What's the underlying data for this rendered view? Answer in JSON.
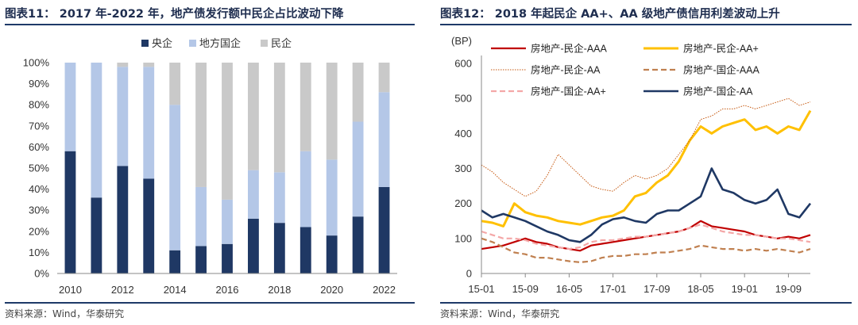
{
  "left": {
    "title": "图表11：  2017 年-2022 年，地产债发行额中民企占比波动下降",
    "source": "资料来源：Wind，华泰研究"
  },
  "right": {
    "title": "图表12：  2018 年起民企 AA+、AA 级地产债信用利差波动上升",
    "source": "资料来源：Wind，华泰研究"
  },
  "colors": {
    "central": "#1f3864",
    "local": "#b4c7e7",
    "private": "#c9c9c9",
    "priv_aaa": "#c00000",
    "priv_aap": "#ffc000",
    "priv_aa": "#c65911",
    "soe_aaa": "#c08050",
    "soe_aap": "#f4a7a7",
    "soe_aa": "#1f3864"
  },
  "chart_data": [
    {
      "type": "bar",
      "stacked": true,
      "legend_position": "top",
      "categories": [
        "2010",
        "2011",
        "2012",
        "2013",
        "2014",
        "2015",
        "2016",
        "2017",
        "2018",
        "2019",
        "2020",
        "2021",
        "2022"
      ],
      "x_tick_labels": [
        "2010",
        "2012",
        "2014",
        "2016",
        "2018",
        "2020",
        "2022"
      ],
      "y_tick_labels": [
        "0%",
        "10%",
        "20%",
        "30%",
        "40%",
        "50%",
        "60%",
        "70%",
        "80%",
        "90%",
        "100%"
      ],
      "ylim": [
        0,
        100
      ],
      "series": [
        {
          "name": "央企",
          "values": [
            58,
            36,
            51,
            45,
            11,
            13,
            14,
            26,
            24,
            22,
            18,
            27,
            41
          ]
        },
        {
          "name": "地方国企",
          "values": [
            42,
            64,
            47,
            53,
            69,
            28,
            21,
            23,
            24,
            36,
            36,
            45,
            45
          ]
        },
        {
          "name": "民企",
          "values": [
            0,
            0,
            2,
            2,
            20,
            59,
            65,
            51,
            52,
            42,
            46,
            28,
            14
          ]
        }
      ]
    },
    {
      "type": "line",
      "ylabel": "(BP)",
      "ylim": [
        0,
        600
      ],
      "y_tick_labels": [
        "0",
        "100",
        "200",
        "300",
        "400",
        "500",
        "600"
      ],
      "x_tick_labels": [
        "15-01",
        "15-09",
        "16-05",
        "17-01",
        "17-09",
        "18-05",
        "19-01",
        "19-09"
      ],
      "x_tick_positions": [
        0,
        8,
        16,
        24,
        32,
        40,
        48,
        56
      ],
      "legend_position": "top",
      "series": [
        {
          "name": "房地产-民企-AAA",
          "x": [
            0,
            2,
            4,
            6,
            8,
            10,
            12,
            14,
            16,
            18,
            20,
            22,
            24,
            26,
            28,
            30,
            32,
            34,
            36,
            38,
            40,
            42,
            44,
            46,
            48,
            50,
            52,
            54,
            56,
            58,
            60
          ],
          "values": [
            70,
            75,
            80,
            90,
            100,
            90,
            85,
            75,
            70,
            65,
            80,
            85,
            90,
            95,
            100,
            105,
            110,
            115,
            120,
            130,
            150,
            135,
            130,
            125,
            120,
            110,
            105,
            100,
            105,
            100,
            110
          ]
        },
        {
          "name": "房地产-民企-AA+",
          "x": [
            0,
            2,
            4,
            6,
            8,
            10,
            12,
            14,
            16,
            18,
            20,
            22,
            24,
            26,
            28,
            30,
            32,
            34,
            36,
            38,
            40,
            42,
            44,
            46,
            48,
            50,
            52,
            54,
            56,
            58,
            60
          ],
          "values": [
            150,
            145,
            135,
            200,
            175,
            165,
            160,
            150,
            145,
            140,
            150,
            160,
            165,
            180,
            220,
            230,
            260,
            280,
            320,
            380,
            420,
            400,
            420,
            430,
            440,
            410,
            420,
            400,
            420,
            410,
            465
          ]
        },
        {
          "name": "房地产-民企-AA",
          "x": [
            0,
            2,
            4,
            6,
            8,
            10,
            12,
            14,
            16,
            18,
            20,
            22,
            24,
            26,
            28,
            30,
            32,
            34,
            36,
            38,
            40,
            42,
            44,
            46,
            48,
            50,
            52,
            54,
            56,
            58,
            60
          ],
          "values": [
            310,
            290,
            260,
            240,
            220,
            235,
            280,
            340,
            310,
            280,
            250,
            240,
            235,
            260,
            280,
            270,
            280,
            300,
            340,
            380,
            440,
            450,
            470,
            470,
            480,
            470,
            480,
            490,
            500,
            480,
            490
          ]
        },
        {
          "name": "房地产-国企-AAA",
          "x": [
            0,
            2,
            4,
            6,
            8,
            10,
            12,
            14,
            16,
            18,
            20,
            22,
            24,
            26,
            28,
            30,
            32,
            34,
            36,
            38,
            40,
            42,
            44,
            46,
            48,
            50,
            52,
            54,
            56,
            58,
            60
          ],
          "values": [
            100,
            90,
            75,
            60,
            55,
            45,
            45,
            40,
            35,
            32,
            35,
            45,
            50,
            50,
            55,
            55,
            60,
            60,
            65,
            70,
            80,
            75,
            70,
            70,
            65,
            70,
            65,
            70,
            65,
            60,
            70
          ]
        },
        {
          "name": "房地产-国企-AA+",
          "x": [
            0,
            2,
            4,
            6,
            8,
            10,
            12,
            14,
            16,
            18,
            20,
            22,
            24,
            26,
            28,
            30,
            32,
            34,
            36,
            38,
            40,
            42,
            44,
            46,
            48,
            50,
            52,
            54,
            56,
            58,
            60
          ],
          "values": [
            120,
            110,
            100,
            100,
            95,
            85,
            80,
            75,
            70,
            75,
            90,
            95,
            95,
            100,
            105,
            105,
            110,
            115,
            120,
            130,
            140,
            130,
            120,
            115,
            110,
            110,
            105,
            100,
            100,
            95,
            90
          ]
        },
        {
          "name": "房地产-国企-AA",
          "x": [
            0,
            2,
            4,
            6,
            8,
            10,
            12,
            14,
            16,
            18,
            20,
            22,
            24,
            26,
            28,
            30,
            32,
            34,
            36,
            38,
            40,
            42,
            44,
            46,
            48,
            50,
            52,
            54,
            56,
            58,
            60
          ],
          "values": [
            180,
            160,
            170,
            160,
            150,
            135,
            120,
            110,
            95,
            90,
            110,
            140,
            155,
            160,
            150,
            145,
            170,
            180,
            180,
            200,
            220,
            300,
            240,
            230,
            210,
            200,
            210,
            240,
            170,
            160,
            200
          ]
        }
      ]
    }
  ]
}
